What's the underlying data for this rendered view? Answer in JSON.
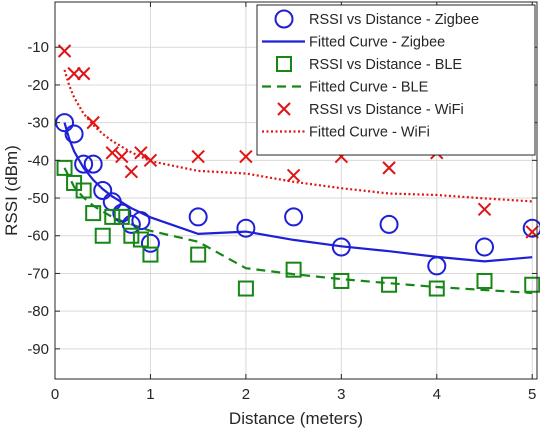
{
  "chart_data": {
    "type": "scatter",
    "title": "",
    "xlabel": "Distance (meters)",
    "ylabel": "RSSI (dBm)",
    "xlim": [
      0,
      5.05
    ],
    "ylim": [
      -98,
      2
    ],
    "xticks": [
      0,
      1,
      2,
      3,
      4,
      5
    ],
    "yticks": [
      -90,
      -80,
      -70,
      -60,
      -50,
      -40,
      -30,
      -20,
      -10
    ],
    "xtick_labels": [
      "0",
      "1",
      "2",
      "3",
      "4",
      "5"
    ],
    "ytick_labels": [
      "-90",
      "-80",
      "-70",
      "-60",
      "-50",
      "-40",
      "-30",
      "-20",
      "-10"
    ],
    "grid": true,
    "legend_position": "top-right",
    "series": [
      {
        "name": "RSSI vs Distance - Zigbee",
        "kind": "scatter",
        "marker": "circle",
        "color": "#1f1fd6",
        "x": [
          0.1,
          0.2,
          0.3,
          0.4,
          0.5,
          0.6,
          0.7,
          0.8,
          0.9,
          1.0,
          1.5,
          2.0,
          2.5,
          3.0,
          3.5,
          4.0,
          4.5,
          5.0
        ],
        "y": [
          -30,
          -33,
          -41,
          -41,
          -48,
          -51,
          -54,
          -57,
          -56,
          -62,
          -55,
          -58,
          -55,
          -63,
          -57,
          -68,
          -63,
          -58
        ]
      },
      {
        "name": "Fitted Curve - Zigbee",
        "kind": "line",
        "dash": "solid",
        "color": "#1f1fd6",
        "x": [
          0.1,
          0.15,
          0.2,
          0.3,
          0.4,
          0.5,
          0.6,
          0.8,
          1.0,
          1.5,
          2.0,
          2.5,
          3.0,
          3.5,
          4.0,
          4.5,
          5.0
        ],
        "y": [
          -30,
          -34.4,
          -37.6,
          -42,
          -45.2,
          -47.6,
          -49.6,
          -52.7,
          -55.1,
          -59.5,
          -58.9,
          -61.1,
          -62.8,
          -64.1,
          -65.6,
          -66.8,
          -65.7
        ]
      },
      {
        "name": "RSSI vs Distance - BLE",
        "kind": "scatter",
        "marker": "square",
        "color": "#168716",
        "x": [
          0.1,
          0.2,
          0.3,
          0.4,
          0.5,
          0.6,
          0.7,
          0.8,
          0.9,
          1.0,
          1.5,
          2.0,
          2.5,
          3.0,
          3.5,
          4.0,
          4.5,
          5.0
        ],
        "y": [
          -42,
          -46,
          -48,
          -54,
          -60,
          -55,
          -55,
          -60,
          -61,
          -65,
          -65,
          -74,
          -69,
          -72,
          -73,
          -74,
          -72,
          -73
        ]
      },
      {
        "name": "Fitted Curve - BLE",
        "kind": "line",
        "dash": "dashed",
        "color": "#168716",
        "x": [
          0.1,
          0.2,
          0.3,
          0.4,
          0.5,
          0.6,
          0.7,
          0.8,
          1.0,
          1.5,
          2.0,
          2.5,
          3.0,
          3.5,
          4.0,
          4.5,
          5.0
        ],
        "y": [
          -42,
          -47,
          -49.9,
          -52,
          -53.6,
          -55,
          -56.1,
          -57,
          -58.7,
          -61.6,
          -68.6,
          -70.2,
          -71.5,
          -72.6,
          -73.6,
          -74.4,
          -75.2
        ]
      },
      {
        "name": "RSSI vs Distance - WiFi",
        "kind": "scatter",
        "marker": "x",
        "color": "#e01414",
        "x": [
          0.1,
          0.2,
          0.3,
          0.4,
          0.6,
          0.7,
          0.8,
          0.9,
          1.0,
          1.5,
          2.0,
          2.5,
          3.0,
          3.5,
          4.0,
          4.5,
          5.0
        ],
        "y": [
          -11,
          -17,
          -17,
          -30,
          -38,
          -39,
          -43,
          -38,
          -40,
          -39,
          -39,
          -44,
          -39,
          -42,
          -38,
          -53,
          -59
        ]
      },
      {
        "name": "Fitted Curve - WiFi",
        "kind": "line",
        "dash": "dotted",
        "color": "#e01414",
        "x": [
          0.1,
          0.15,
          0.2,
          0.3,
          0.4,
          0.5,
          0.6,
          0.8,
          1.0,
          1.5,
          2.0,
          2.5,
          3.0,
          3.5,
          4.0,
          4.5,
          5.0
        ],
        "y": [
          -16,
          -20.2,
          -23.3,
          -27.6,
          -30.6,
          -33,
          -34.9,
          -37.9,
          -40.2,
          -42.8,
          -43.5,
          -45.7,
          -47.4,
          -48.8,
          -49.2,
          -50.1,
          -50.9
        ]
      }
    ]
  }
}
